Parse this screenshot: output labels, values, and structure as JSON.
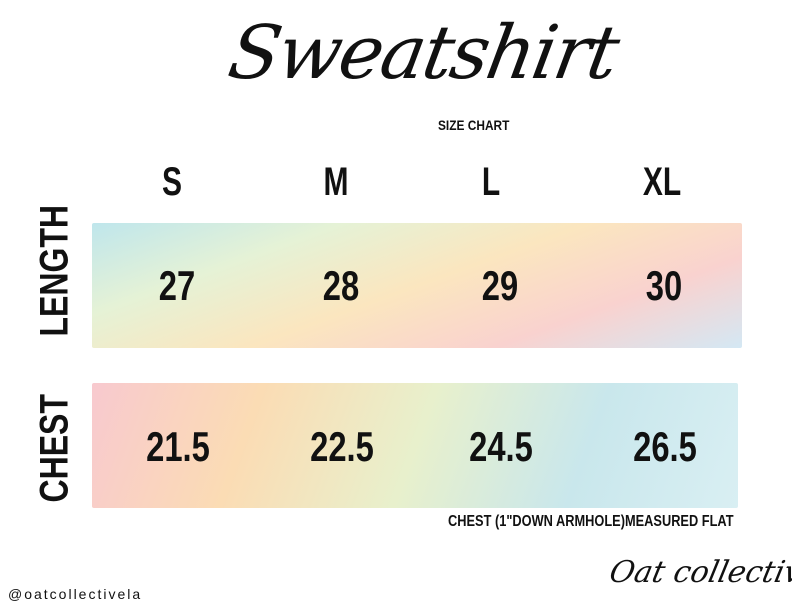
{
  "title": "Sweatshirt",
  "subtitle": "SIZE CHART",
  "sizes": [
    "S",
    "M",
    "L",
    "XL"
  ],
  "rows": [
    {
      "label": "LENGTH",
      "values": [
        "27",
        "28",
        "29",
        "30"
      ]
    },
    {
      "label": "CHEST",
      "values": [
        "21.5",
        "22.5",
        "24.5",
        "26.5"
      ]
    }
  ],
  "note": "CHEST (1\"DOWN ARMHOLE)MEASURED FLAT",
  "handle": "@oatcollectivela",
  "logo": "Oat collective"
}
